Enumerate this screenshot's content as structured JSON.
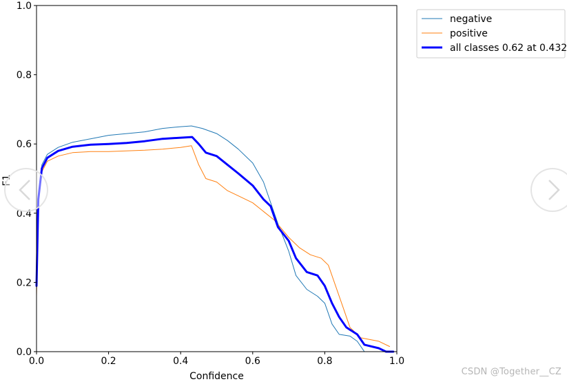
{
  "chart_data": {
    "type": "line",
    "xlabel": "Confidence",
    "ylabel": "F1",
    "xlim": [
      0.0,
      1.0
    ],
    "ylim": [
      0.0,
      1.0
    ],
    "x_ticks": [
      "0.0",
      "0.2",
      "0.4",
      "0.6",
      "0.8",
      "1.0"
    ],
    "y_ticks": [
      "0.0",
      "0.2",
      "0.4",
      "0.6",
      "0.8",
      "1.0"
    ],
    "grid": false,
    "legend_position": "outside-top-right",
    "series": [
      {
        "name": "negative",
        "color": "#1f77b4",
        "line_width": 1,
        "points": [
          [
            0.0,
            0.18
          ],
          [
            0.005,
            0.44
          ],
          [
            0.015,
            0.54
          ],
          [
            0.03,
            0.57
          ],
          [
            0.06,
            0.59
          ],
          [
            0.1,
            0.605
          ],
          [
            0.15,
            0.615
          ],
          [
            0.2,
            0.625
          ],
          [
            0.25,
            0.63
          ],
          [
            0.3,
            0.635
          ],
          [
            0.35,
            0.645
          ],
          [
            0.4,
            0.65
          ],
          [
            0.43,
            0.652
          ],
          [
            0.46,
            0.645
          ],
          [
            0.5,
            0.63
          ],
          [
            0.53,
            0.61
          ],
          [
            0.56,
            0.585
          ],
          [
            0.6,
            0.545
          ],
          [
            0.63,
            0.49
          ],
          [
            0.65,
            0.43
          ],
          [
            0.67,
            0.37
          ],
          [
            0.7,
            0.29
          ],
          [
            0.72,
            0.22
          ],
          [
            0.75,
            0.18
          ],
          [
            0.78,
            0.16
          ],
          [
            0.8,
            0.14
          ],
          [
            0.82,
            0.08
          ],
          [
            0.84,
            0.05
          ],
          [
            0.87,
            0.045
          ],
          [
            0.89,
            0.03
          ],
          [
            0.91,
            0.0
          ]
        ]
      },
      {
        "name": "positive",
        "color": "#ff7f0e",
        "line_width": 1,
        "points": [
          [
            0.0,
            0.16
          ],
          [
            0.005,
            0.43
          ],
          [
            0.015,
            0.52
          ],
          [
            0.03,
            0.55
          ],
          [
            0.06,
            0.565
          ],
          [
            0.1,
            0.575
          ],
          [
            0.15,
            0.578
          ],
          [
            0.2,
            0.578
          ],
          [
            0.25,
            0.58
          ],
          [
            0.3,
            0.582
          ],
          [
            0.35,
            0.585
          ],
          [
            0.4,
            0.59
          ],
          [
            0.43,
            0.595
          ],
          [
            0.45,
            0.54
          ],
          [
            0.47,
            0.5
          ],
          [
            0.5,
            0.49
          ],
          [
            0.53,
            0.465
          ],
          [
            0.56,
            0.45
          ],
          [
            0.6,
            0.43
          ],
          [
            0.63,
            0.405
          ],
          [
            0.66,
            0.38
          ],
          [
            0.7,
            0.33
          ],
          [
            0.73,
            0.3
          ],
          [
            0.76,
            0.28
          ],
          [
            0.79,
            0.27
          ],
          [
            0.81,
            0.25
          ],
          [
            0.83,
            0.19
          ],
          [
            0.85,
            0.13
          ],
          [
            0.87,
            0.07
          ],
          [
            0.9,
            0.04
          ],
          [
            0.95,
            0.03
          ],
          [
            0.98,
            0.015
          ]
        ]
      },
      {
        "name": "all classes 0.62 at 0.432",
        "color": "#0000ff",
        "line_width": 3,
        "points": [
          [
            0.0,
            0.19
          ],
          [
            0.005,
            0.44
          ],
          [
            0.015,
            0.53
          ],
          [
            0.03,
            0.56
          ],
          [
            0.06,
            0.58
          ],
          [
            0.1,
            0.592
          ],
          [
            0.15,
            0.598
          ],
          [
            0.2,
            0.6
          ],
          [
            0.25,
            0.603
          ],
          [
            0.3,
            0.608
          ],
          [
            0.35,
            0.615
          ],
          [
            0.4,
            0.618
          ],
          [
            0.432,
            0.62
          ],
          [
            0.45,
            0.6
          ],
          [
            0.47,
            0.575
          ],
          [
            0.5,
            0.565
          ],
          [
            0.53,
            0.54
          ],
          [
            0.56,
            0.515
          ],
          [
            0.6,
            0.48
          ],
          [
            0.63,
            0.44
          ],
          [
            0.65,
            0.42
          ],
          [
            0.67,
            0.36
          ],
          [
            0.7,
            0.32
          ],
          [
            0.72,
            0.27
          ],
          [
            0.75,
            0.23
          ],
          [
            0.78,
            0.22
          ],
          [
            0.8,
            0.19
          ],
          [
            0.82,
            0.14
          ],
          [
            0.84,
            0.1
          ],
          [
            0.86,
            0.07
          ],
          [
            0.89,
            0.05
          ],
          [
            0.91,
            0.02
          ],
          [
            0.95,
            0.01
          ],
          [
            0.97,
            0.0
          ],
          [
            0.99,
            0.0
          ]
        ]
      }
    ]
  },
  "watermark": "CSDN @Together__CZ"
}
